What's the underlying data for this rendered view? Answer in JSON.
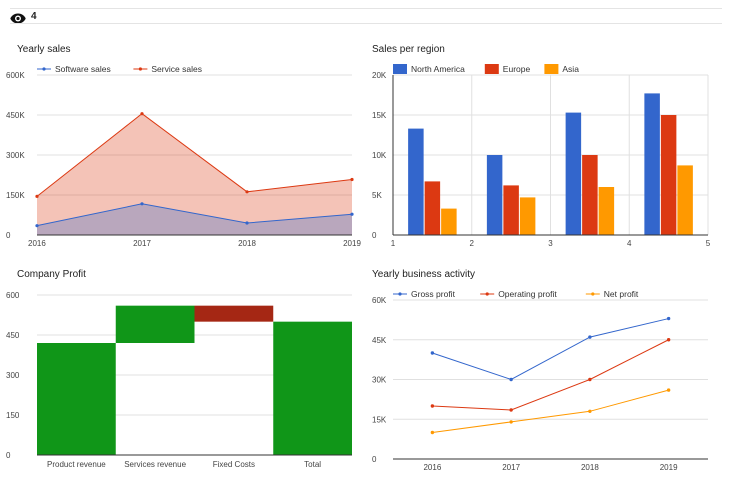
{
  "header": {
    "view_icon": "eye-icon",
    "view_count": "4"
  },
  "colors": {
    "software": "#3366cc",
    "service": "#dc3912",
    "north_america": "#3366cc",
    "europe": "#dc3912",
    "asia": "#ff9900",
    "waterfall_up": "#109618",
    "waterfall_down": "#a52714",
    "waterfall_total": "#109618",
    "gross": "#3366cc",
    "operating": "#dc3912",
    "net": "#ff9900"
  },
  "chart_data": [
    {
      "id": "yearly-sales",
      "type": "area",
      "title": "Yearly sales",
      "x": [
        "2016",
        "2017",
        "2018",
        "2019"
      ],
      "series": [
        {
          "name": "Software sales",
          "values": [
            35000,
            117000,
            45000,
            78000
          ]
        },
        {
          "name": "Service sales",
          "values": [
            145000,
            455000,
            162000,
            208000
          ]
        }
      ],
      "yticks": [
        "0",
        "150K",
        "300K",
        "450K",
        "600K"
      ],
      "ylim": [
        0,
        600000
      ],
      "legend": "top"
    },
    {
      "id": "sales-per-region",
      "type": "bar",
      "title": "Sales per region",
      "categories": [
        1,
        2,
        3,
        4
      ],
      "series": [
        {
          "name": "North America",
          "values": [
            13300,
            10000,
            15300,
            17700
          ]
        },
        {
          "name": "Europe",
          "values": [
            6700,
            6200,
            10000,
            15000
          ]
        },
        {
          "name": "Asia",
          "values": [
            3300,
            4700,
            6000,
            8700
          ]
        }
      ],
      "xticks": [
        "1",
        "2",
        "3",
        "4",
        "5"
      ],
      "xlim": [
        1,
        5
      ],
      "yticks": [
        "0",
        "5K",
        "10K",
        "15K",
        "20K"
      ],
      "ylim": [
        0,
        20000
      ],
      "legend": "top"
    },
    {
      "id": "company-profit",
      "type": "bar",
      "subtype": "waterfall",
      "title": "Company Profit",
      "categories": [
        "Product revenue",
        "Services revenue",
        "Fixed Costs",
        "Total"
      ],
      "values": [
        420,
        140,
        -60,
        500
      ],
      "steps": [
        {
          "base": 0,
          "top": 420
        },
        {
          "base": 420,
          "top": 560
        },
        {
          "base": 500,
          "top": 560
        },
        {
          "base": 0,
          "top": 500
        }
      ],
      "yticks": [
        "0",
        "150",
        "300",
        "450",
        "600"
      ],
      "ylim": [
        0,
        600
      ],
      "legend": "none"
    },
    {
      "id": "yearly-business-activity",
      "type": "line",
      "title": "Yearly business activity",
      "x": [
        "2016",
        "2017",
        "2018",
        "2019"
      ],
      "series": [
        {
          "name": "Gross profit",
          "values": [
            40000,
            30000,
            46000,
            53000
          ]
        },
        {
          "name": "Operating profit",
          "values": [
            20000,
            18500,
            30000,
            45000
          ]
        },
        {
          "name": "Net profit",
          "values": [
            10000,
            14000,
            18000,
            26000
          ]
        }
      ],
      "yticks": [
        "0",
        "15K",
        "30K",
        "45K",
        "60K"
      ],
      "ylim": [
        0,
        60000
      ],
      "legend": "top"
    }
  ]
}
